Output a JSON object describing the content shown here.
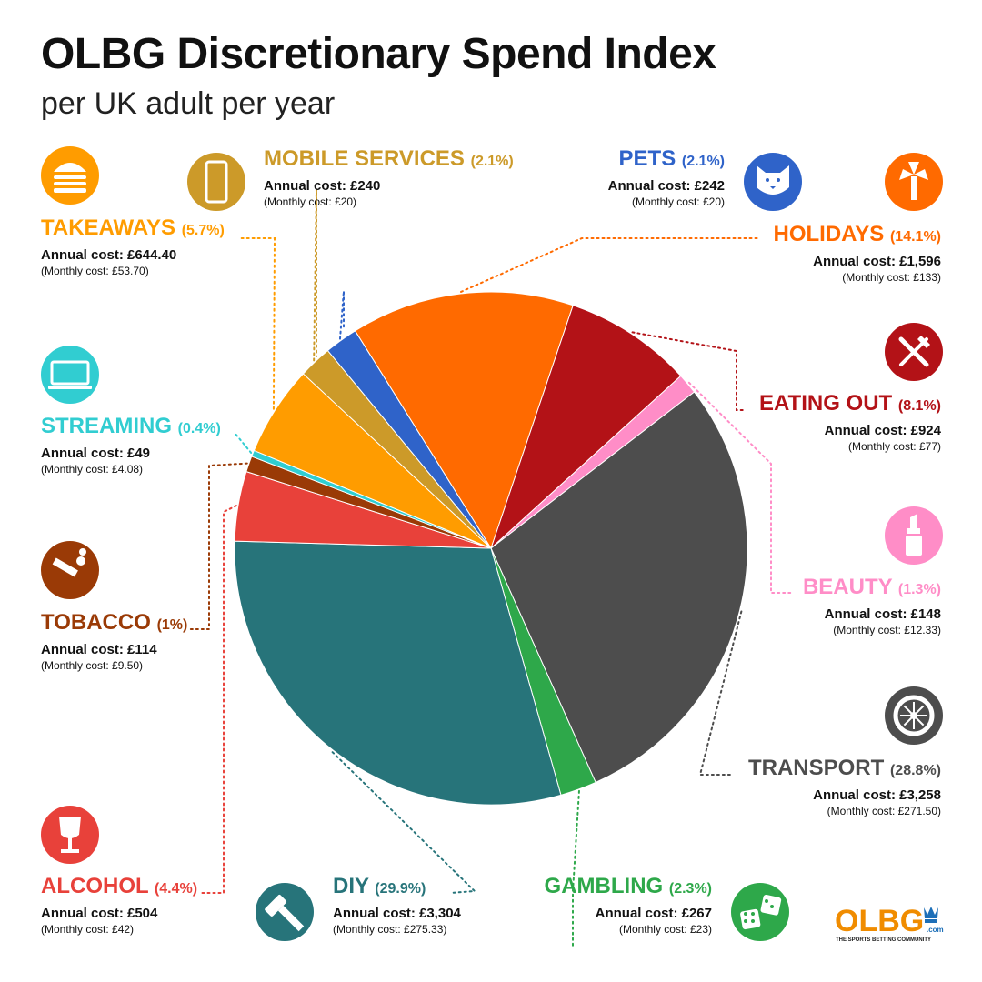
{
  "title": "OLBG Discretionary Spend Index",
  "subtitle": "per UK adult per year",
  "logo": {
    "text": "OLBG",
    "domain": ".com",
    "tagline": "THE SPORTS BETTING COMMUNITY"
  },
  "chart_data": {
    "type": "pie",
    "title": "OLBG Discretionary Spend Index",
    "subtitle": "per UK adult per year",
    "slices": [
      {
        "label": "HOLIDAYS",
        "pct_label": "(14.1%)",
        "value": 14.1,
        "annual": "Annual cost: £1,596",
        "monthly": "(Monthly cost: £133)",
        "color": "#ff6a00",
        "icon": "palm-tree-icon"
      },
      {
        "label": "EATING OUT",
        "pct_label": "(8.1%)",
        "value": 8.1,
        "annual": "Annual cost: £924",
        "monthly": "(Monthly cost: £77)",
        "color": "#b31217",
        "icon": "knife-fork-icon"
      },
      {
        "label": "BEAUTY",
        "pct_label": "(1.3%)",
        "value": 1.3,
        "annual": "Annual cost: £148",
        "monthly": "(Monthly cost: £12.33)",
        "color": "#ff8dc7",
        "icon": "lipstick-icon"
      },
      {
        "label": "TRANSPORT",
        "pct_label": "(28.8%)",
        "value": 28.8,
        "annual": "Annual cost: £3,258",
        "monthly": "(Monthly cost: £271.50)",
        "color": "#4d4d4d",
        "icon": "wheel-icon"
      },
      {
        "label": "GAMBLING",
        "pct_label": "(2.3%)",
        "value": 2.3,
        "annual": "Annual cost: £267",
        "monthly": "(Monthly cost: £23)",
        "color": "#2ea84a",
        "icon": "dice-icon"
      },
      {
        "label": "DIY",
        "pct_label": "(29.9%)",
        "value": 29.9,
        "annual": "Annual cost: £3,304",
        "monthly": "(Monthly cost: £275.33)",
        "color": "#27747a",
        "icon": "hammer-icon"
      },
      {
        "label": "ALCOHOL",
        "pct_label": "(4.4%)",
        "value": 4.4,
        "annual": "Annual cost: £504",
        "monthly": "(Monthly cost: £42)",
        "color": "#e8413a",
        "icon": "wine-glass-icon"
      },
      {
        "label": "TOBACCO",
        "pct_label": "(1%)",
        "value": 1.0,
        "annual": "Annual cost: £114",
        "monthly": "(Monthly cost: £9.50)",
        "color": "#9a3a06",
        "icon": "cigarette-icon"
      },
      {
        "label": "STREAMING",
        "pct_label": "(0.4%)",
        "value": 0.4,
        "annual": "Annual cost: £49",
        "monthly": "(Monthly cost: £4.08)",
        "color": "#31cdd1",
        "icon": "tv-icon"
      },
      {
        "label": "TAKEAWAYS",
        "pct_label": "(5.7%)",
        "value": 5.7,
        "annual": "Annual cost: £644.40",
        "monthly": "(Monthly cost: £53.70)",
        "color": "#ff9c00",
        "icon": "burger-icon"
      },
      {
        "label": "MOBILE SERVICES",
        "pct_label": "(2.1%)",
        "value": 2.1,
        "annual": "Annual cost: £240",
        "monthly": "(Monthly cost: £20)",
        "color": "#cc9a29",
        "icon": "mobile-phone-icon"
      },
      {
        "label": "PETS",
        "pct_label": "(2.1%)",
        "value": 2.1,
        "annual": "Annual cost: £242",
        "monthly": "(Monthly cost: £20)",
        "color": "#2f63c9",
        "icon": "cat-icon"
      }
    ]
  }
}
